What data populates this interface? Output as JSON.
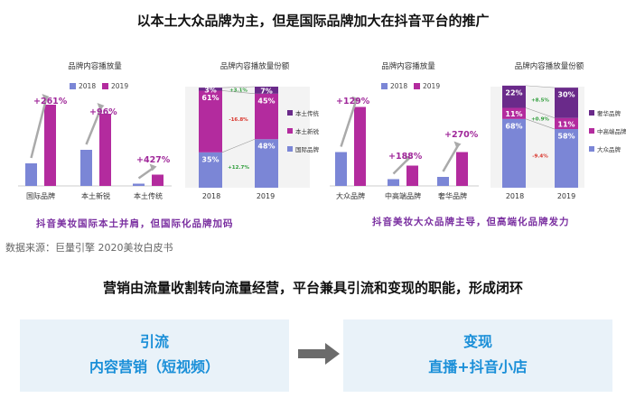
{
  "headline_top": "以本土大众品牌为主，但是国际品牌加大在抖音平台的推广",
  "headline_bottom": "营销由流量收割转向流量经营，平台兼具引流和变现的职能，形成闭环",
  "source": "数据来源：巨量引擎 2020美妆白皮书",
  "captions": {
    "left": "抖音美妆国际本土并肩，但国际化品牌加码",
    "right": "抖音美妆大众品牌主导，但高端化品牌发力"
  },
  "colors": {
    "y2018": "#7b86d6",
    "y2019": "#b32b9e",
    "accent": "#a0289a",
    "up": "#2e9d3a",
    "down": "#d9342b"
  },
  "flow": {
    "left_title": "引流",
    "left_sub": "内容营销（短视频）",
    "right_title": "变现",
    "right_sub": "直播+抖音小店"
  },
  "chart_data": [
    {
      "type": "bar",
      "title": "品牌内容播放量",
      "categories": [
        "国际品牌",
        "本土新锐",
        "本土传统"
      ],
      "series": [
        {
          "name": "2018",
          "values": [
            10,
            16,
            1
          ]
        },
        {
          "name": "2019",
          "values": [
            36,
            32,
            5
          ]
        }
      ],
      "growth_labels": [
        "+261%",
        "+96%",
        "+427%"
      ]
    },
    {
      "type": "bar",
      "title": "品牌内容播放量份额",
      "stacked": true,
      "categories": [
        "2018",
        "2019"
      ],
      "series": [
        {
          "name": "国际品牌",
          "values": [
            35,
            48
          ]
        },
        {
          "name": "本土新锐",
          "values": [
            61,
            45
          ]
        },
        {
          "name": "本土传统",
          "values": [
            3,
            7
          ]
        }
      ],
      "changes": [
        {
          "series": "本土传统",
          "label": "+3.1%"
        },
        {
          "series": "本土新锐",
          "label": "-16.8%"
        },
        {
          "series": "国际品牌",
          "label": "+12.7%"
        }
      ]
    },
    {
      "type": "bar",
      "title": "品牌内容播放量",
      "categories": [
        "大众品牌",
        "中高端品牌",
        "奢华品牌"
      ],
      "series": [
        {
          "name": "2018",
          "values": [
            15,
            3,
            4
          ]
        },
        {
          "name": "2019",
          "values": [
            35,
            9,
            15
          ]
        }
      ],
      "growth_labels": [
        "+129%",
        "+188%",
        "+270%"
      ]
    },
    {
      "type": "bar",
      "title": "品牌内容播放量份额",
      "stacked": true,
      "categories": [
        "2018",
        "2019"
      ],
      "series": [
        {
          "name": "大众品牌",
          "values": [
            68,
            58
          ]
        },
        {
          "name": "中高端品牌",
          "values": [
            11,
            11
          ]
        },
        {
          "name": "奢华品牌",
          "values": [
            22,
            30
          ]
        }
      ],
      "changes": [
        {
          "series": "奢华品牌",
          "label": "+8.5%"
        },
        {
          "series": "中高端品牌",
          "label": "+0.9%"
        },
        {
          "series": "大众品牌",
          "label": "-9.4%"
        }
      ]
    }
  ]
}
